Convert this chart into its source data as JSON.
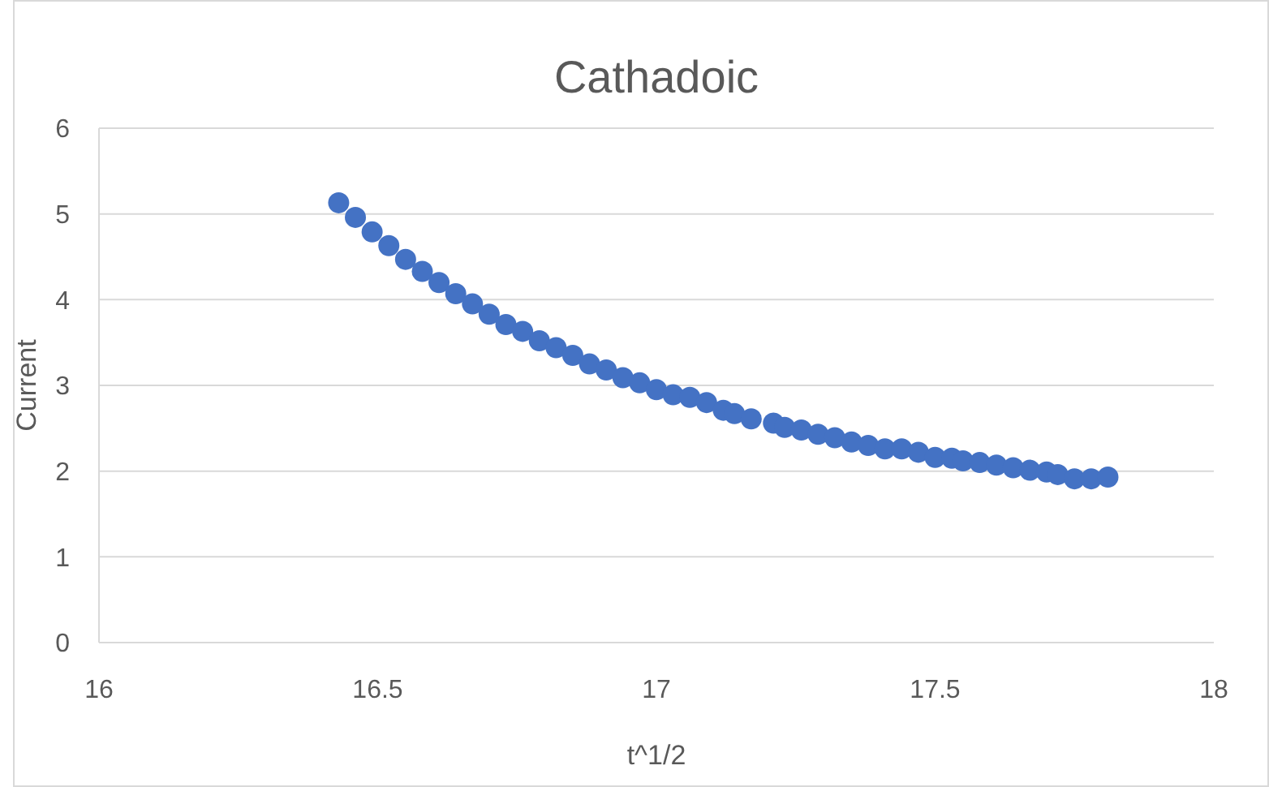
{
  "chart_data": {
    "type": "scatter",
    "title": "Cathadoic",
    "xlabel": "t^1/2",
    "ylabel": "Current",
    "x": [
      16.43,
      16.46,
      16.49,
      16.52,
      16.55,
      16.58,
      16.61,
      16.64,
      16.67,
      16.7,
      16.73,
      16.76,
      16.79,
      16.82,
      16.85,
      16.88,
      16.91,
      16.94,
      16.97,
      17.0,
      17.03,
      17.06,
      17.09,
      17.12,
      17.14,
      17.17,
      17.21,
      17.23,
      17.26,
      17.29,
      17.32,
      17.35,
      17.38,
      17.41,
      17.44,
      17.47,
      17.5,
      17.53,
      17.55,
      17.58,
      17.61,
      17.64,
      17.67,
      17.7,
      17.72,
      17.75,
      17.78,
      17.81
    ],
    "series": [
      {
        "color": "#4472c4",
        "values": [
          5.13,
          4.96,
          4.79,
          4.63,
          4.47,
          4.33,
          4.2,
          4.07,
          3.95,
          3.83,
          3.71,
          3.63,
          3.52,
          3.44,
          3.35,
          3.25,
          3.18,
          3.09,
          3.03,
          2.95,
          2.89,
          2.86,
          2.8,
          2.71,
          2.67,
          2.61,
          2.56,
          2.51,
          2.48,
          2.43,
          2.39,
          2.34,
          2.3,
          2.26,
          2.26,
          2.22,
          2.16,
          2.15,
          2.12,
          2.1,
          2.07,
          2.04,
          2.01,
          1.99,
          1.96,
          1.91,
          1.91,
          1.93
        ]
      }
    ],
    "xlim": [
      16,
      18
    ],
    "xticks": [
      16,
      16.5,
      17,
      17.5,
      18
    ],
    "ylim": [
      0,
      6
    ],
    "yticks": [
      0,
      1,
      2,
      3,
      4,
      5,
      6
    ],
    "grid": "y",
    "marker": "circle"
  }
}
